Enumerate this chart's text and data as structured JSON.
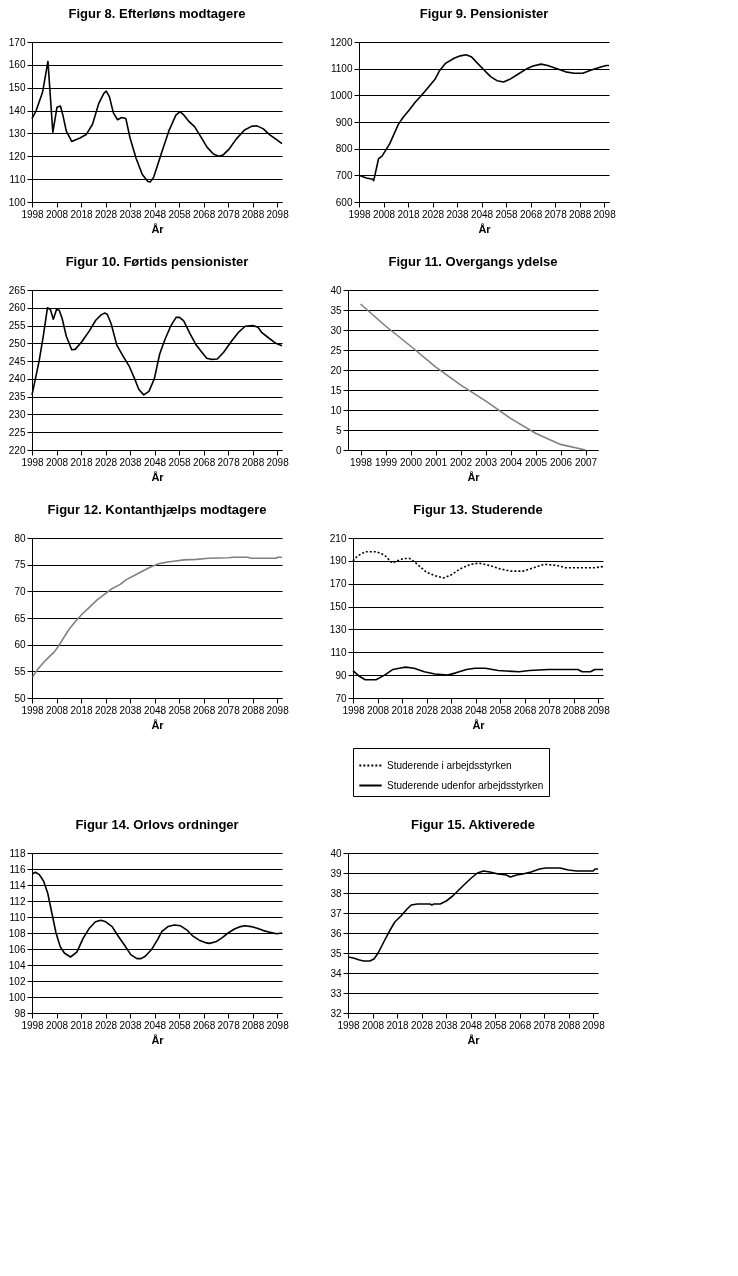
{
  "chart_data": [
    {
      "type": "line",
      "title": "Figur 8. Efterløns modtagere",
      "xlabel": "År",
      "xlim": [
        1998,
        2100
      ],
      "xticks": [
        1998,
        2008,
        2018,
        2028,
        2038,
        2048,
        2058,
        2068,
        2078,
        2088,
        2098
      ],
      "ylim": [
        100,
        170
      ],
      "yticks": [
        100,
        110,
        120,
        130,
        140,
        150,
        160,
        170
      ],
      "grid": "y",
      "legend": false,
      "x": [
        1998,
        1999.7,
        2002.3,
        2004.5,
        2006.5,
        2008.2,
        2009.6,
        2010.6,
        2012,
        2014.2,
        2017.6,
        2020.1,
        2022.7,
        2025.2,
        2027.3,
        2028.3,
        2029.6,
        2031.2,
        2032.9,
        2034.6,
        2036.3,
        2038,
        2040.5,
        2043,
        2045.3,
        2046.3,
        2047.7,
        2050.7,
        2053.8,
        2056.7,
        2058.4,
        2060,
        2061.8,
        2064.3,
        2066.9,
        2069.4,
        2072,
        2074.2,
        2075.9,
        2078.3,
        2081.3,
        2084.7,
        2087.8,
        2089.8,
        2092.4,
        2094.9,
        2097.5,
        2100
      ],
      "series": [
        {
          "color": "#000000",
          "values": [
            136.5,
            140,
            148,
            161.5,
            130.5,
            141.5,
            142,
            138,
            131,
            126.5,
            128,
            129.5,
            134,
            143,
            147.5,
            148.5,
            146,
            139,
            136,
            137,
            136.5,
            128,
            119,
            112,
            109,
            108.8,
            111,
            121,
            131,
            138,
            139.5,
            138,
            135.5,
            133,
            128.5,
            124,
            121,
            120,
            120.5,
            123,
            127.5,
            131.5,
            133.2,
            133.3,
            132,
            129.5,
            127.5,
            125.5
          ]
        }
      ]
    },
    {
      "type": "line",
      "title": "Figur 9. Pensionister",
      "xlabel": "År",
      "xlim": [
        1998,
        2100
      ],
      "xticks": [
        1998,
        2008,
        2018,
        2028,
        2038,
        2048,
        2058,
        2068,
        2078,
        2088,
        2098
      ],
      "ylim": [
        600,
        1200
      ],
      "yticks": [
        600,
        700,
        800,
        900,
        1000,
        1100,
        1200
      ],
      "grid": "y",
      "legend": false,
      "x": [
        1998,
        2001,
        2003.6,
        2004,
        2006,
        2007.4,
        2010.6,
        2014,
        2015.8,
        2018.5,
        2021,
        2023,
        2026.3,
        2029,
        2030.7,
        2033.3,
        2037,
        2039.4,
        2041.7,
        2043.8,
        2046.4,
        2049,
        2051.7,
        2054.3,
        2057,
        2059.5,
        2063,
        2066.5,
        2069,
        2072.3,
        2075,
        2078.8,
        2082.3,
        2085.8,
        2089.3,
        2092.8,
        2096.3,
        2098.9,
        2100
      ],
      "series": [
        {
          "color": "#000000",
          "values": [
            700,
            690,
            685,
            680,
            763,
            772,
            820,
            890,
            915,
            945,
            975,
            995,
            1030,
            1060,
            1090,
            1120,
            1140,
            1148,
            1152,
            1145,
            1120,
            1095,
            1070,
            1055,
            1050,
            1060,
            1080,
            1100,
            1110,
            1117,
            1112,
            1100,
            1088,
            1083,
            1083,
            1095,
            1105,
            1112,
            1112
          ]
        }
      ]
    },
    {
      "type": "line",
      "title": "Figur 10. Førtids pensionister",
      "xlabel": "År",
      "xlim": [
        1998,
        2100
      ],
      "xticks": [
        1998,
        2008,
        2018,
        2028,
        2038,
        2048,
        2058,
        2068,
        2078,
        2088,
        2098
      ],
      "ylim": [
        220,
        265
      ],
      "yticks": [
        220,
        225,
        230,
        235,
        240,
        245,
        250,
        255,
        260,
        265
      ],
      "grid": "y",
      "legend": false,
      "x": [
        1998,
        2000.9,
        2002.6,
        2004.3,
        2005.5,
        2006.7,
        2008,
        2009.1,
        2010.3,
        2012,
        2014.2,
        2015.6,
        2018.4,
        2021.4,
        2024,
        2026.2,
        2027.6,
        2028.7,
        2030.3,
        2032.6,
        2035.1,
        2037.7,
        2039.9,
        2041.6,
        2043.6,
        2045.7,
        2047.9,
        2050.1,
        2052.2,
        2054.7,
        2056.8,
        2058.2,
        2059.9,
        2062.4,
        2065,
        2067.3,
        2069.3,
        2071,
        2073.6,
        2076.2,
        2079.3,
        2082.1,
        2085,
        2088.1,
        2090.2,
        2091.8,
        2094.6,
        2097.5,
        2100
      ],
      "series": [
        {
          "color": "#000000",
          "values": [
            235.5,
            245,
            252,
            260,
            259.5,
            256.8,
            259.5,
            259.3,
            257,
            252,
            248.2,
            248.3,
            250.5,
            253.5,
            256.5,
            258,
            258.5,
            258.2,
            255.5,
            249.5,
            246.5,
            243.5,
            240,
            237,
            235.5,
            236.5,
            240,
            247,
            251,
            255,
            257.3,
            257.3,
            256.3,
            252.8,
            249.5,
            247.5,
            245.8,
            245.5,
            245.6,
            247.5,
            250.5,
            253,
            254.8,
            255,
            254.5,
            253,
            251.5,
            250,
            249.3
          ]
        }
      ]
    },
    {
      "type": "line",
      "title": "Figur 11. Overgangs ydelse",
      "xlabel": "År",
      "categories": [
        "1998",
        "1999",
        "2000",
        "2001",
        "2002",
        "2003",
        "2004",
        "2005",
        "2006",
        "2007"
      ],
      "ylim": [
        0,
        40
      ],
      "yticks": [
        0,
        5,
        10,
        15,
        20,
        25,
        30,
        35,
        40
      ],
      "grid": "y",
      "legend": false,
      "series": [
        {
          "color": "#808080",
          "values": [
            36.5,
            31,
            26,
            20.8,
            16.3,
            12.3,
            7.9,
            4.2,
            1.4,
            0
          ]
        }
      ]
    },
    {
      "type": "line",
      "title": "Figur 12. Kontanthjælps modtagere",
      "xlabel": "År",
      "xlim": [
        1998,
        2100
      ],
      "xticks": [
        1998,
        2008,
        2018,
        2028,
        2038,
        2048,
        2058,
        2068,
        2078,
        2088,
        2098
      ],
      "ylim": [
        50,
        80
      ],
      "yticks": [
        50,
        55,
        60,
        65,
        70,
        75,
        80
      ],
      "grid": "y",
      "legend": false,
      "x": [
        1998.3,
        2000.5,
        2003,
        2005,
        2007.2,
        2008.9,
        2010.5,
        2013,
        2015.6,
        2018.4,
        2021.4,
        2024.8,
        2028.1,
        2030.6,
        2034,
        2036.5,
        2039.9,
        2043.2,
        2046.6,
        2049.9,
        2053.3,
        2056.6,
        2060,
        2065,
        2070,
        2078.3,
        2080,
        2085.9,
        2087.5,
        2091.6,
        2097.5,
        2098.3,
        2100
      ],
      "series": [
        {
          "color": "#808080",
          "values": [
            54,
            55.5,
            56.8,
            57.7,
            58.7,
            59.8,
            61,
            62.8,
            64.3,
            65.7,
            67,
            68.5,
            69.6,
            70.5,
            71.3,
            72.2,
            73,
            73.8,
            74.6,
            75.2,
            75.5,
            75.7,
            75.9,
            76,
            76.2,
            76.3,
            76.4,
            76.4,
            76.2,
            76.2,
            76.2,
            76.4,
            76.4
          ]
        }
      ]
    },
    {
      "type": "line",
      "title": "Figur 13. Studerende",
      "xlabel": "År",
      "xlim": [
        1998,
        2100
      ],
      "xticks": [
        1998,
        2008,
        2018,
        2028,
        2038,
        2048,
        2058,
        2068,
        2078,
        2088,
        2098
      ],
      "ylim": [
        70,
        210
      ],
      "yticks": [
        70,
        90,
        110,
        130,
        150,
        170,
        190,
        210
      ],
      "grid": "y",
      "legend": "bottom",
      "series": [
        {
          "name": "Studerende i arbejdsstyrken",
          "color": "#000000",
          "line_style": "dotted",
          "x": [
            1998,
            1999.7,
            2003,
            2007.4,
            2010.9,
            2014,
            2016,
            2018.6,
            2021.2,
            2023.7,
            2028,
            2031.4,
            2034.9,
            2038.3,
            2041.7,
            2046,
            2049.5,
            2053.7,
            2058,
            2062.3,
            2067.5,
            2071.8,
            2076,
            2081.2,
            2084.6,
            2091.5,
            2096.6,
            2100
          ],
          "values": [
            190,
            194,
            198,
            198,
            195,
            188,
            190,
            192,
            192,
            188,
            180,
            177,
            175,
            178,
            183,
            187,
            188,
            186,
            183,
            181,
            181,
            184,
            187,
            186,
            184,
            184,
            184,
            185
          ]
        },
        {
          "name": "Studerende udenfor arbejdsstyrken",
          "color": "#000000",
          "line_style": "solid",
          "x": [
            1998,
            2000.6,
            2003,
            2007.4,
            2010.9,
            2014.3,
            2016.9,
            2019.4,
            2022.9,
            2027.1,
            2031.4,
            2036.6,
            2040,
            2044.3,
            2047.7,
            2052,
            2057.2,
            2065.7,
            2070,
            2077.7,
            2089.7,
            2091.5,
            2094.9,
            2096.6,
            2100
          ],
          "values": [
            94,
            89,
            86,
            86,
            90,
            95,
            96,
            97,
            96,
            93,
            91,
            90,
            92,
            95,
            96,
            96,
            94,
            93,
            94,
            95,
            95,
            93,
            93,
            95,
            95
          ]
        }
      ]
    },
    {
      "type": "line",
      "title": "Figur 14. Orlovs ordninger",
      "xlabel": "År",
      "xlim": [
        1998,
        2100
      ],
      "xticks": [
        1998,
        2008,
        2018,
        2028,
        2038,
        2048,
        2058,
        2068,
        2078,
        2088,
        2098
      ],
      "ylim": [
        98,
        118
      ],
      "yticks": [
        98,
        100,
        102,
        104,
        106,
        108,
        110,
        112,
        114,
        116,
        118
      ],
      "grid": "y",
      "legend": false,
      "x": [
        1998.2,
        1999.4,
        2001,
        2002.7,
        2004.4,
        2006.1,
        2007.8,
        2009.5,
        2011.2,
        2013.7,
        2016.3,
        2018.8,
        2021.4,
        2023.9,
        2026.1,
        2028.1,
        2030.7,
        2033.2,
        2035.7,
        2038.3,
        2040.8,
        2042.5,
        2044.2,
        2046.7,
        2049.3,
        2051,
        2053.5,
        2056,
        2058.6,
        2061.1,
        2063.7,
        2066.2,
        2068.7,
        2070.4,
        2073,
        2075.5,
        2078,
        2080.6,
        2083.1,
        2084.8,
        2087.4,
        2089.9,
        2092.4,
        2095,
        2097.8,
        2100
      ],
      "series": [
        {
          "color": "#000000",
          "values": [
            115.4,
            115.6,
            115.3,
            114.5,
            113,
            110.5,
            108,
            106.3,
            105.5,
            105,
            105.6,
            107.3,
            108.6,
            109.4,
            109.6,
            109.4,
            108.8,
            107.6,
            106.5,
            105.3,
            104.8,
            104.8,
            105.1,
            105.9,
            107.2,
            108.2,
            108.8,
            109,
            108.9,
            108.4,
            107.6,
            107.1,
            106.8,
            106.7,
            106.9,
            107.4,
            108,
            108.5,
            108.8,
            108.9,
            108.8,
            108.6,
            108.3,
            108.1,
            107.9,
            108
          ]
        }
      ]
    },
    {
      "type": "line",
      "title": "Figur 15. Aktiverede",
      "xlabel": "År",
      "xlim": [
        1998,
        2100
      ],
      "xticks": [
        1998,
        2008,
        2018,
        2028,
        2038,
        2048,
        2058,
        2068,
        2078,
        2088,
        2098
      ],
      "ylim": [
        32,
        40
      ],
      "yticks": [
        32,
        33,
        34,
        35,
        36,
        37,
        38,
        39,
        40
      ],
      "grid": "y",
      "legend": false,
      "x": [
        1998,
        2000.2,
        2002.7,
        2004.4,
        2006.9,
        2008.6,
        2010.3,
        2012.8,
        2015.4,
        2017.1,
        2019.6,
        2022.1,
        2023.8,
        2026.3,
        2031.4,
        2032.2,
        2033.1,
        2035.6,
        2038.1,
        2040.7,
        2043.2,
        2045.7,
        2048.3,
        2050.8,
        2053.3,
        2055.9,
        2059.2,
        2062.6,
        2064.3,
        2066.8,
        2069.3,
        2072.7,
        2076.1,
        2078.6,
        2084.5,
        2087.9,
        2091.3,
        2098,
        2098.8,
        2100
      ],
      "series": [
        {
          "color": "#000000",
          "values": [
            34.8,
            34.75,
            34.65,
            34.6,
            34.6,
            34.7,
            35.0,
            35.6,
            36.2,
            36.55,
            36.85,
            37.2,
            37.4,
            37.45,
            37.45,
            37.4,
            37.45,
            37.45,
            37.6,
            37.85,
            38.15,
            38.45,
            38.75,
            39.0,
            39.1,
            39.05,
            38.95,
            38.9,
            38.8,
            38.9,
            38.95,
            39.05,
            39.2,
            39.25,
            39.25,
            39.15,
            39.1,
            39.1,
            39.2,
            39.2
          ]
        }
      ]
    }
  ]
}
